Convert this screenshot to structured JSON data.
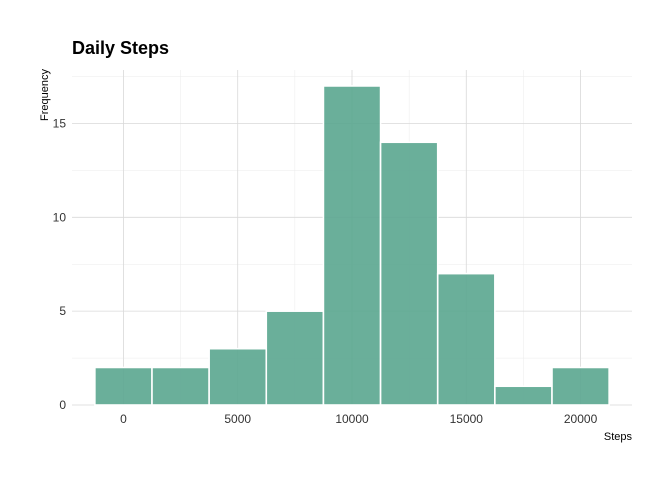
{
  "chart_data": {
    "type": "bar",
    "title": "Daily Steps",
    "xlabel": "Steps",
    "ylabel": "Frequency",
    "bin_width": 2500,
    "bins": [
      {
        "start": -1250,
        "end": 1250,
        "count": 2
      },
      {
        "start": 1250,
        "end": 3750,
        "count": 2
      },
      {
        "start": 3750,
        "end": 6250,
        "count": 3
      },
      {
        "start": 6250,
        "end": 8750,
        "count": 5
      },
      {
        "start": 8750,
        "end": 11250,
        "count": 17
      },
      {
        "start": 11250,
        "end": 13750,
        "count": 14
      },
      {
        "start": 13750,
        "end": 16250,
        "count": 7
      },
      {
        "start": 16250,
        "end": 18750,
        "count": 1
      },
      {
        "start": 18750,
        "end": 21250,
        "count": 2
      }
    ],
    "xlim": [
      -2250,
      22250
    ],
    "ylim": [
      0,
      17.85
    ],
    "xticks": [
      0,
      5000,
      10000,
      15000,
      20000
    ],
    "yticks": [
      0,
      5,
      10,
      15
    ],
    "grid": true,
    "legend": "none",
    "bar_color": "#5aa68f"
  }
}
